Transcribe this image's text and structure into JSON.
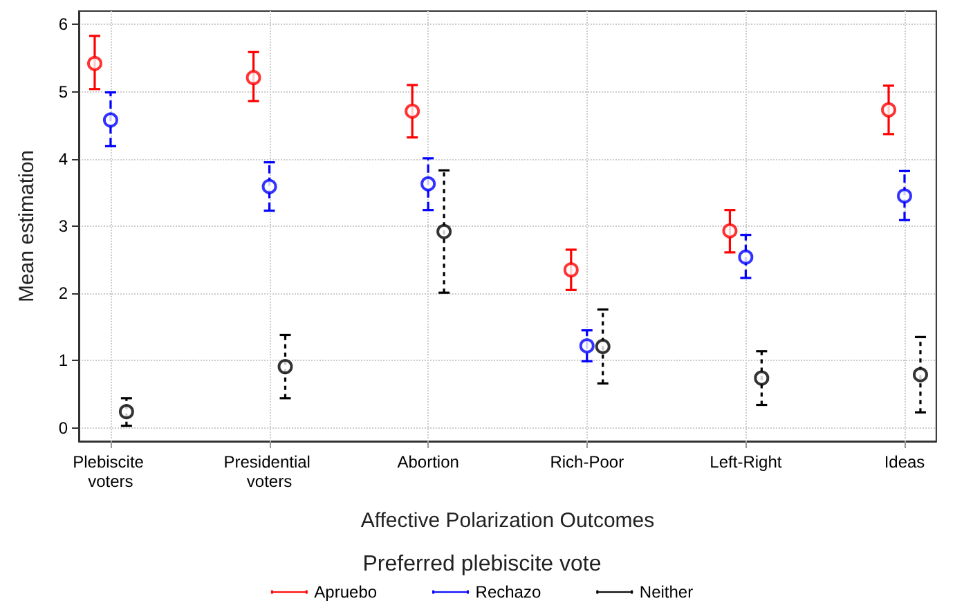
{
  "chart_data": {
    "type": "scatter",
    "xlabel": "Affective Polarization Outcomes",
    "ylabel": "Mean estimation",
    "legend_title": "Preferred plebiscite vote",
    "categories": [
      "Plebiscite voters",
      "Presidential voters",
      "Abortion",
      "Rich-Poor",
      "Left-Right",
      "Ideas"
    ],
    "series": [
      {
        "name": "Apruebo",
        "color": "#ff0000",
        "line_style": "solid",
        "values": [
          5.42,
          5.21,
          4.71,
          2.35,
          2.93,
          4.73
        ],
        "errors": [
          [
            5.04,
            5.83
          ],
          [
            4.86,
            5.59
          ],
          [
            4.32,
            5.1
          ],
          [
            2.05,
            2.65
          ],
          [
            2.61,
            3.24
          ],
          [
            4.37,
            5.09
          ]
        ]
      },
      {
        "name": "Rechazo",
        "color": "#0000ff",
        "line_style": "dashed",
        "values": [
          4.58,
          3.59,
          3.63,
          1.22,
          2.54,
          3.45
        ],
        "errors": [
          [
            4.19,
            4.99
          ],
          [
            3.23,
            3.95
          ],
          [
            3.24,
            4.01
          ],
          [
            0.99,
            1.45
          ],
          [
            2.23,
            2.87
          ],
          [
            3.09,
            3.82
          ]
        ]
      },
      {
        "name": "Neither",
        "color": "#000000",
        "line_style": "dotted",
        "values": [
          0.24,
          0.91,
          2.92,
          1.21,
          0.74,
          0.79
        ],
        "errors": [
          [
            0.03,
            0.44
          ],
          [
            0.44,
            1.38
          ],
          [
            2.01,
            3.83
          ],
          [
            0.66,
            1.76
          ],
          [
            0.34,
            1.14
          ],
          [
            0.23,
            1.35
          ]
        ]
      }
    ],
    "ylim": [
      -0.2,
      6.2
    ],
    "yticks": [
      0,
      1,
      2,
      3,
      4,
      5,
      6
    ],
    "grid": true,
    "marker": "circle",
    "legend": "bottom"
  }
}
